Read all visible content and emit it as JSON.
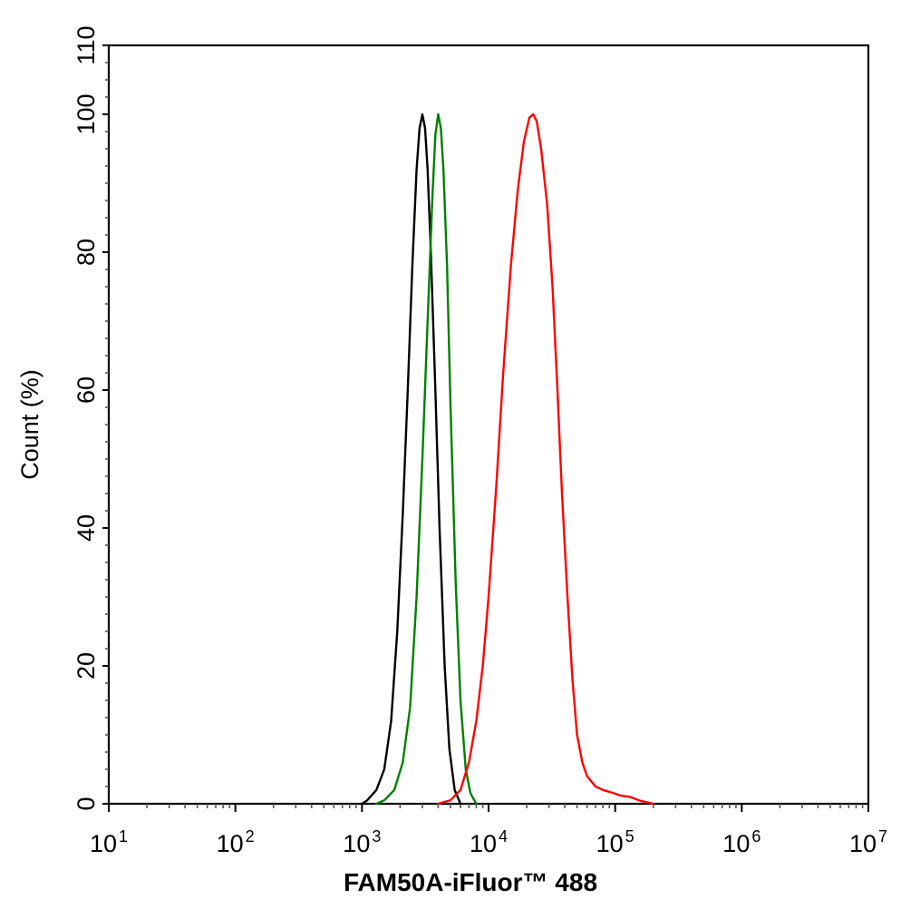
{
  "chart_data": {
    "type": "line",
    "xlabel": "FAM50A-iFluor™ 488",
    "ylabel": "Count  (%)",
    "x_scale": "log",
    "x_tick_bases": [
      "10",
      "10",
      "10",
      "10",
      "10",
      "10",
      "10"
    ],
    "x_tick_exponents": [
      "1",
      "2",
      "3",
      "4",
      "5",
      "6",
      "7"
    ],
    "xlim": [
      10,
      10000000
    ],
    "ylim": [
      0,
      110
    ],
    "y_ticks": [
      0,
      20,
      40,
      60,
      80,
      100,
      110
    ],
    "y_tick_labels": [
      "0",
      "20",
      "40",
      "60",
      "80",
      "100",
      "110"
    ],
    "grid": false,
    "series": [
      {
        "color": "#000000",
        "x": [
          1000,
          1100,
          1300,
          1500,
          1700,
          1900,
          2100,
          2300,
          2500,
          2700,
          2850,
          3000,
          3150,
          3300,
          3500,
          3800,
          4100,
          4500,
          4900,
          5400,
          6000
        ],
        "y": [
          0,
          0.5,
          2,
          5,
          12,
          25,
          42,
          60,
          78,
          92,
          98,
          100,
          98,
          92,
          80,
          60,
          40,
          20,
          8,
          2,
          0
        ]
      },
      {
        "color": "#008000",
        "x": [
          1300,
          1500,
          1800,
          2100,
          2400,
          2700,
          3000,
          3300,
          3600,
          3800,
          4000,
          4200,
          4400,
          4700,
          5000,
          5500,
          6000,
          6600,
          7200,
          8000
        ],
        "y": [
          0,
          0.5,
          2,
          6,
          14,
          30,
          50,
          70,
          88,
          97,
          100,
          98,
          92,
          78,
          58,
          32,
          15,
          5,
          1.5,
          0
        ]
      },
      {
        "color": "#FF0000",
        "x": [
          4000,
          5000,
          6000,
          7000,
          8000,
          9000,
          10000,
          11500,
          13000,
          15000,
          17000,
          19000,
          21000,
          22500,
          24000,
          26000,
          29000,
          32000,
          35000,
          38000,
          42000,
          46000,
          50000,
          55000,
          60000,
          70000,
          80000,
          95000,
          110000,
          130000,
          160000,
          200000
        ],
        "y": [
          0,
          0.5,
          2,
          6,
          12,
          20,
          30,
          46,
          62,
          78,
          89,
          96,
          99.5,
          100,
          99,
          95,
          87,
          75,
          60,
          45,
          30,
          18,
          10,
          6,
          4,
          2.5,
          2,
          1.6,
          1.2,
          1,
          0.4,
          0
        ]
      }
    ]
  }
}
